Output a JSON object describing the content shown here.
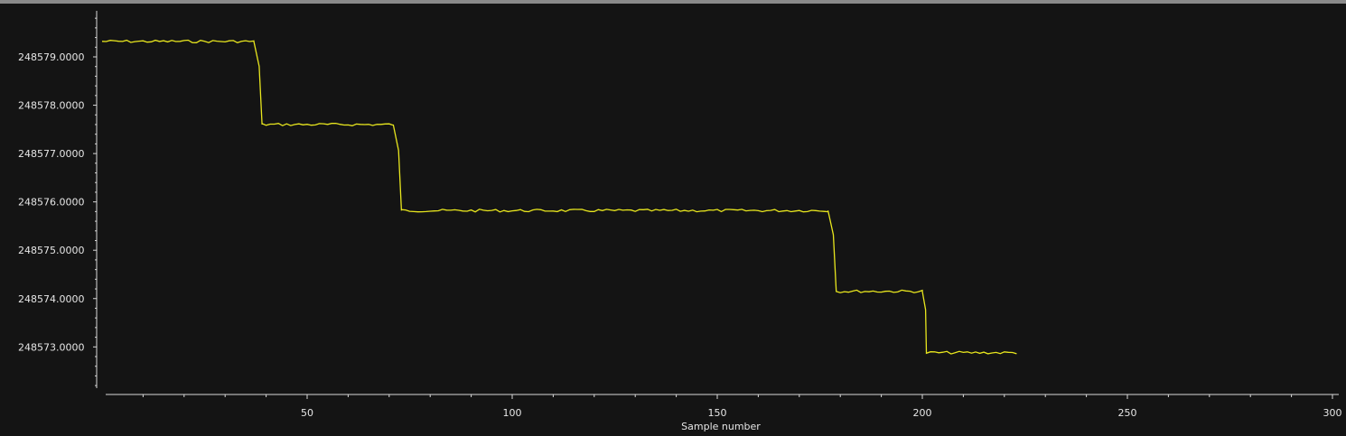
{
  "colors": {
    "background": "#141414",
    "axis": "#d8d8d8",
    "series": "#e8e61e",
    "ylabel": "#c83232"
  },
  "chart_data": {
    "type": "line",
    "title": "",
    "xlabel": "Sample number",
    "ylabel": "",
    "xlim": [
      0,
      300
    ],
    "ylim": [
      248572.17,
      248579.99
    ],
    "x_ticks": [
      50,
      100,
      150,
      200,
      250,
      300
    ],
    "y_ticks": [
      248573,
      248574,
      248575,
      248576,
      248577,
      248578,
      248579
    ],
    "y_tick_format": "0.0000",
    "grid": false,
    "legend": "none",
    "series": [
      {
        "segments": [
          {
            "x_start": 0,
            "x_end": 37,
            "y": 248579.32
          },
          {
            "x_start": 37,
            "x_end": 39,
            "y_start": 248579.32,
            "y_end": 248577.6
          },
          {
            "x_start": 39,
            "x_end": 71,
            "y": 248577.6
          },
          {
            "x_start": 71,
            "x_end": 73,
            "y_start": 248577.6,
            "y_end": 248575.82
          },
          {
            "x_start": 73,
            "x_end": 177,
            "y": 248575.82
          },
          {
            "x_start": 177,
            "x_end": 179,
            "y_start": 248575.82,
            "y_end": 248574.15
          },
          {
            "x_start": 179,
            "x_end": 200,
            "y": 248574.15
          },
          {
            "x_start": 200,
            "x_end": 201,
            "y_start": 248574.15,
            "y_end": 248572.88
          },
          {
            "x_start": 201,
            "x_end": 223,
            "y": 248572.88
          }
        ]
      }
    ]
  }
}
